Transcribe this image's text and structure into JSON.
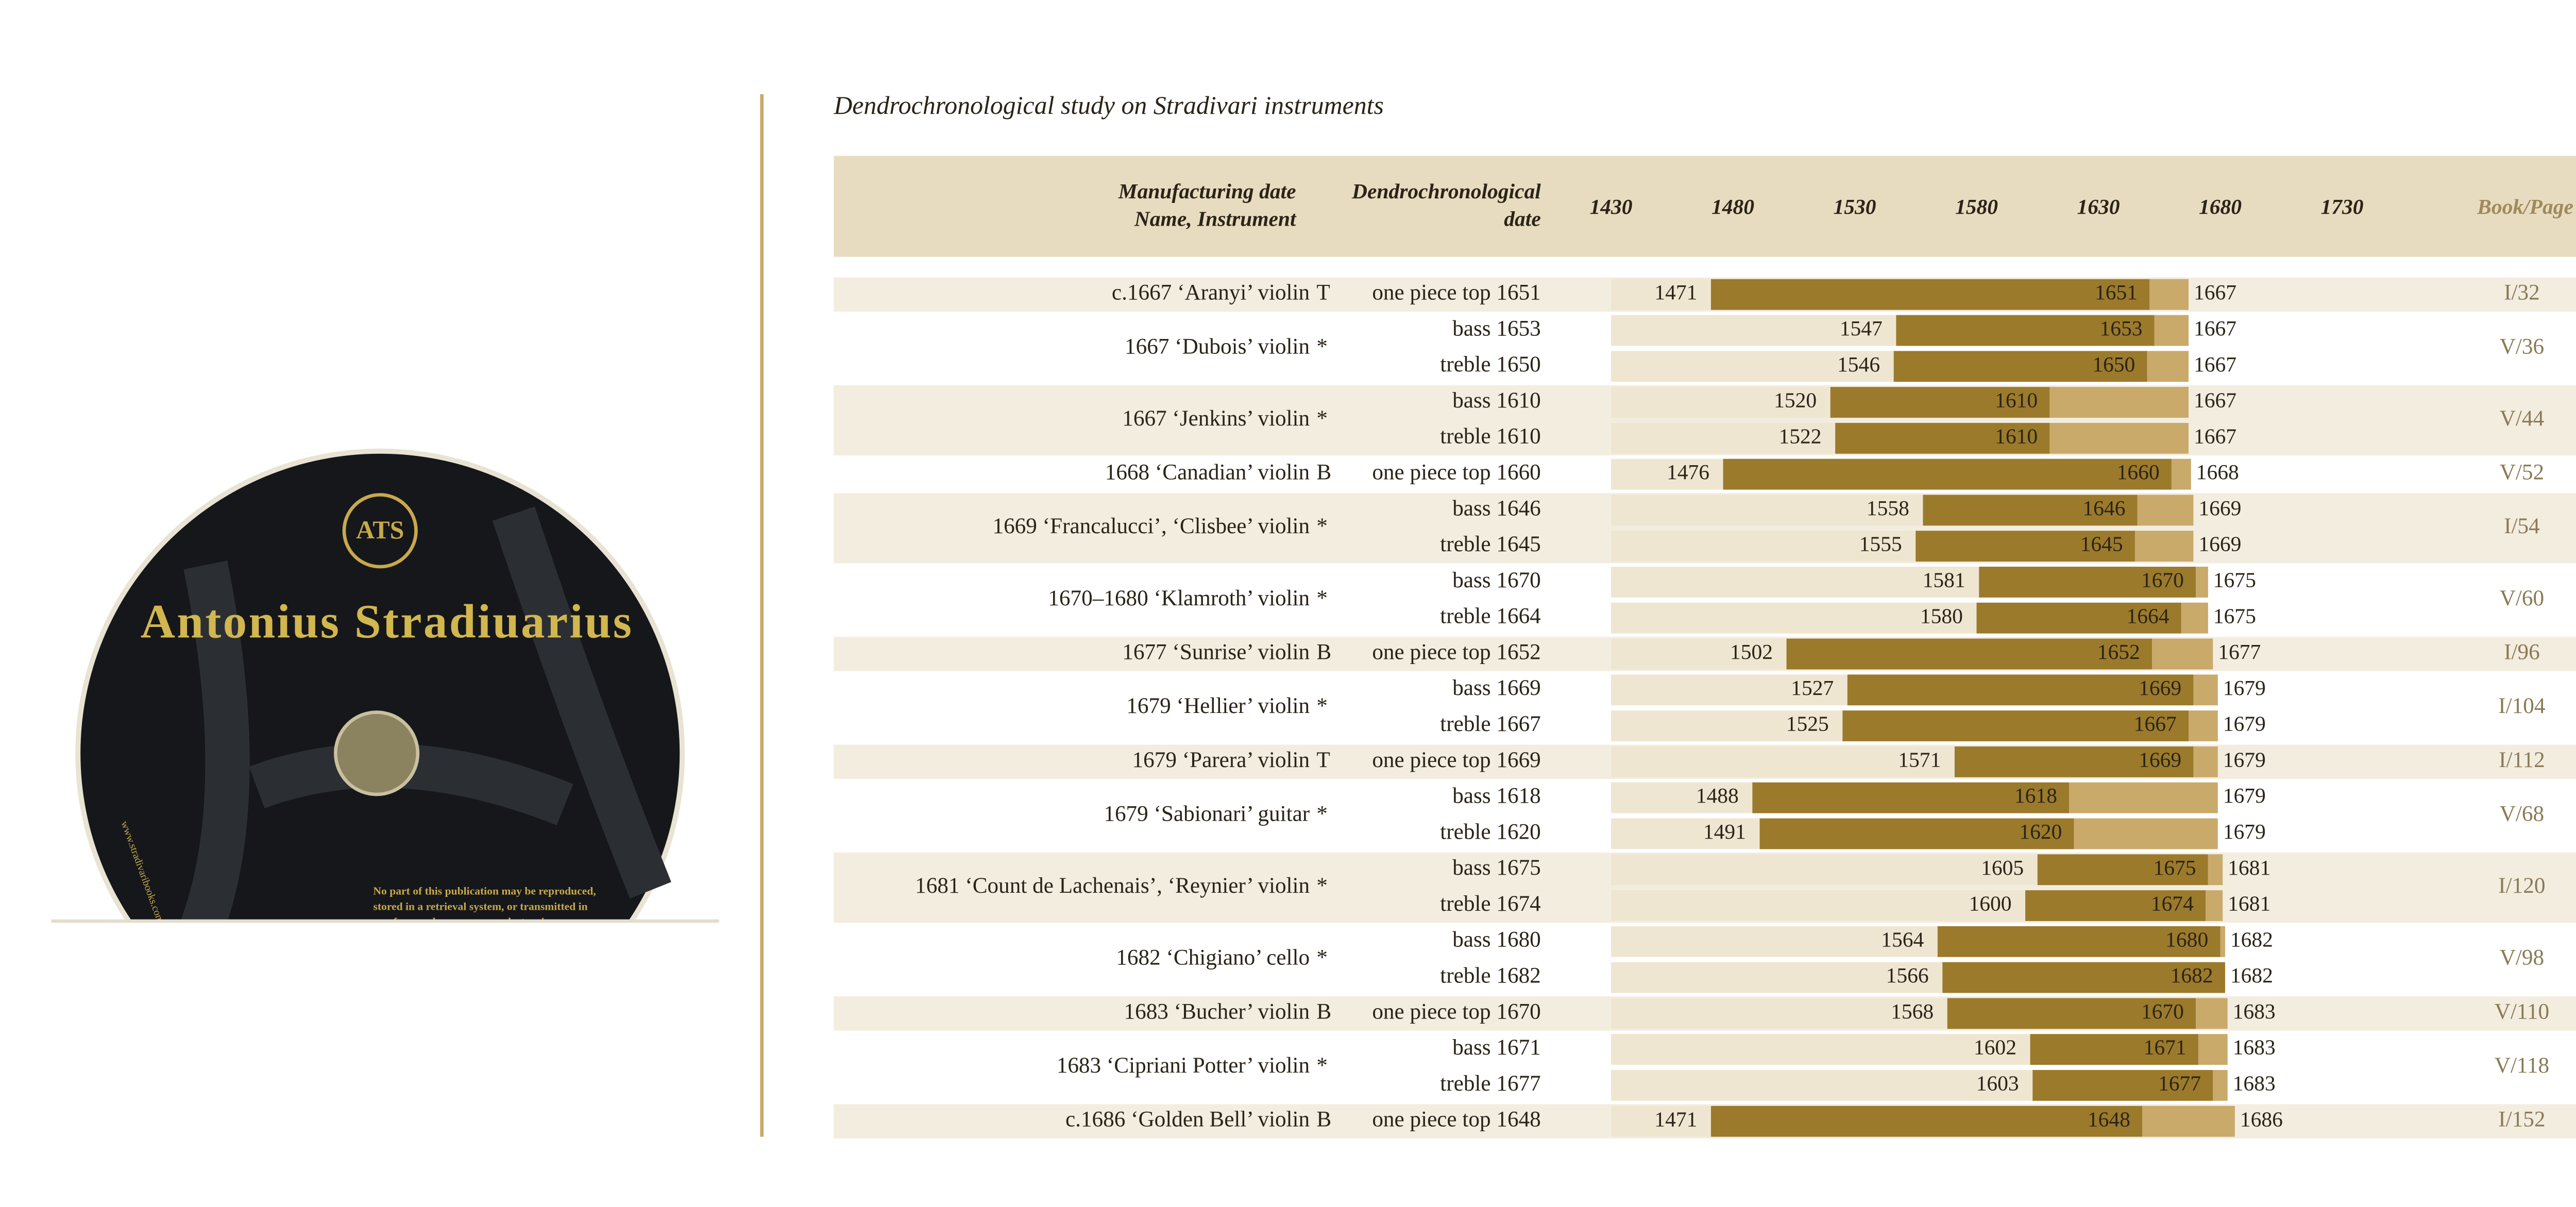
{
  "title": "Dendrochronological study on Stradivari instruments",
  "cd": {
    "logo": "ATS",
    "name": "Antonius Stradiuarius",
    "url": "www.stradivaribooks.com",
    "notice": [
      "No part of this publication may be reproduced,",
      "stored in a retrieval system, or transmitted in",
      "any form or by any means, electronic"
    ]
  },
  "header": {
    "name": [
      "Manufacturing date",
      "Name, Instrument"
    ],
    "dendro": [
      "Dendrochronological",
      "date"
    ],
    "book": "Book/Page"
  },
  "axis": {
    "xlim": [
      1430,
      1730
    ],
    "xticks": [
      1430,
      1480,
      1530,
      1580,
      1630,
      1680,
      1730
    ]
  },
  "rows": [
    {
      "name": "c.1667 ‘Aranyi’ violin",
      "mark": "T",
      "book": "I/32",
      "woods": [
        {
          "label": "one piece top 1651",
          "start": 1471,
          "dendro": 1651,
          "end": 1667
        }
      ]
    },
    {
      "name": "1667 ‘Dubois’ violin",
      "mark": "*",
      "book": "V/36",
      "woods": [
        {
          "label": "bass 1653",
          "start": 1547,
          "dendro": 1653,
          "end": 1667
        },
        {
          "label": "treble 1650",
          "start": 1546,
          "dendro": 1650,
          "end": 1667
        }
      ]
    },
    {
      "name": "1667 ‘Jenkins’ violin",
      "mark": "*",
      "book": "V/44",
      "woods": [
        {
          "label": "bass 1610",
          "start": 1520,
          "dendro": 1610,
          "end": 1667
        },
        {
          "label": "treble 1610",
          "start": 1522,
          "dendro": 1610,
          "end": 1667
        }
      ]
    },
    {
      "name": "1668 ‘Canadian’ violin",
      "mark": "B",
      "book": "V/52",
      "woods": [
        {
          "label": "one piece top 1660",
          "start": 1476,
          "dendro": 1660,
          "end": 1668
        }
      ]
    },
    {
      "name": "1669 ‘Francalucci’, ‘Clisbee’ violin",
      "mark": "*",
      "book": "I/54",
      "woods": [
        {
          "label": "bass 1646",
          "start": 1558,
          "dendro": 1646,
          "end": 1669
        },
        {
          "label": "treble 1645",
          "start": 1555,
          "dendro": 1645,
          "end": 1669
        }
      ]
    },
    {
      "name": "1670–1680 ‘Klamroth’ violin",
      "mark": "*",
      "book": "V/60",
      "woods": [
        {
          "label": "bass 1670",
          "start": 1581,
          "dendro": 1670,
          "end": 1675
        },
        {
          "label": "treble 1664",
          "start": 1580,
          "dendro": 1664,
          "end": 1675
        }
      ]
    },
    {
      "name": "1677 ‘Sunrise’ violin",
      "mark": "B",
      "book": "I/96",
      "woods": [
        {
          "label": "one piece top 1652",
          "start": 1502,
          "dendro": 1652,
          "end": 1677
        }
      ]
    },
    {
      "name": "1679 ‘Hellier’ violin",
      "mark": "*",
      "book": "I/104",
      "woods": [
        {
          "label": "bass 1669",
          "start": 1527,
          "dendro": 1669,
          "end": 1679
        },
        {
          "label": "treble 1667",
          "start": 1525,
          "dendro": 1667,
          "end": 1679
        }
      ]
    },
    {
      "name": "1679 ‘Parera’ violin",
      "mark": "T",
      "book": "I/112",
      "woods": [
        {
          "label": "one piece top 1669",
          "start": 1571,
          "dendro": 1669,
          "end": 1679
        }
      ]
    },
    {
      "name": "1679 ‘Sabionari’ guitar",
      "mark": "*",
      "book": "V/68",
      "woods": [
        {
          "label": "bass 1618",
          "start": 1488,
          "dendro": 1618,
          "end": 1679
        },
        {
          "label": "treble 1620",
          "start": 1491,
          "dendro": 1620,
          "end": 1679
        }
      ]
    },
    {
      "name": "1681 ‘Count de Lachenais’, ‘Reynier’ violin",
      "mark": "*",
      "book": "I/120",
      "woods": [
        {
          "label": "bass 1675",
          "start": 1605,
          "dendro": 1675,
          "end": 1681
        },
        {
          "label": "treble 1674",
          "start": 1600,
          "dendro": 1674,
          "end": 1681
        }
      ]
    },
    {
      "name": "1682 ‘Chigiano’ cello",
      "mark": "*",
      "book": "V/98",
      "woods": [
        {
          "label": "bass 1680",
          "start": 1564,
          "dendro": 1680,
          "end": 1682
        },
        {
          "label": "treble 1682",
          "start": 1566,
          "dendro": 1682,
          "end": 1682
        }
      ]
    },
    {
      "name": "1683 ‘Bucher’ violin",
      "mark": "B",
      "book": "V/110",
      "woods": [
        {
          "label": "one piece top 1670",
          "start": 1568,
          "dendro": 1670,
          "end": 1683
        }
      ]
    },
    {
      "name": "1683 ‘Cipriani Potter’ violin",
      "mark": "*",
      "book": "V/118",
      "woods": [
        {
          "label": "bass 1671",
          "start": 1602,
          "dendro": 1671,
          "end": 1683
        },
        {
          "label": "treble 1677",
          "start": 1603,
          "dendro": 1677,
          "end": 1683
        }
      ]
    },
    {
      "name": "c.1686 ‘Golden Bell’ violin",
      "mark": "B",
      "book": "I/152",
      "woods": [
        {
          "label": "one piece top 1648",
          "start": 1471,
          "dendro": 1648,
          "end": 1686
        }
      ]
    }
  ]
}
